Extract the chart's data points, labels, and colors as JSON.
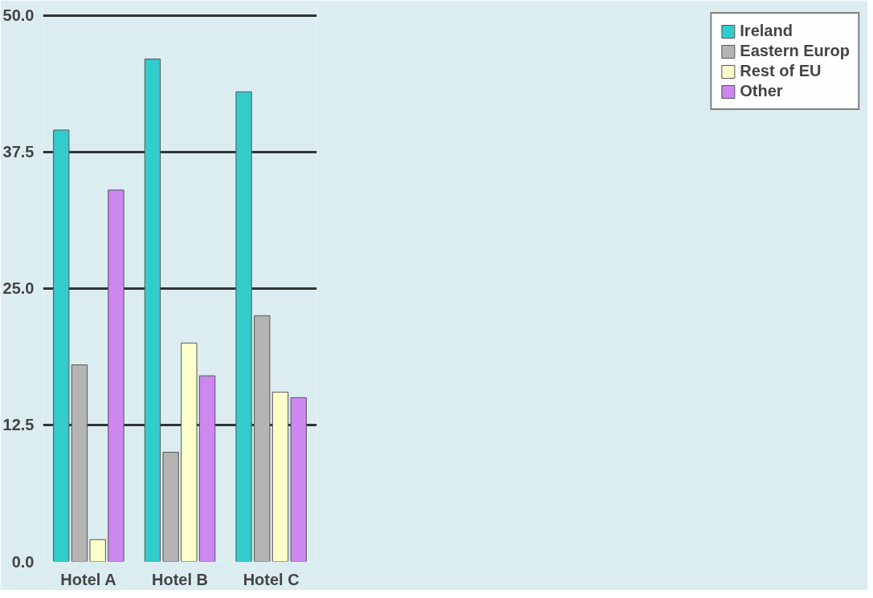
{
  "chart_data": {
    "type": "bar",
    "categories": [
      "Hotel A",
      "Hotel B",
      "Hotel C"
    ],
    "series": [
      {
        "name": "Ireland",
        "color": "#33cccc",
        "values": [
          39.5,
          46,
          43
        ]
      },
      {
        "name": "Eastern Europ",
        "color": "#b4b4b4",
        "values": [
          18,
          10,
          22.5
        ]
      },
      {
        "name": "Rest of EU",
        "color": "#ffffcc",
        "values": [
          2,
          20,
          15.5
        ]
      },
      {
        "name": "Other",
        "color": "#cc88ee",
        "values": [
          34,
          17,
          15
        ]
      }
    ],
    "ylim": [
      0,
      50
    ],
    "yticks": [
      {
        "value": 0,
        "label": "0.0"
      },
      12.5,
      {
        "value": 25,
        "label": "25.0"
      },
      37.5,
      {
        "value": 50,
        "label": "50.0"
      }
    ],
    "grid": "y",
    "legend": "right"
  }
}
